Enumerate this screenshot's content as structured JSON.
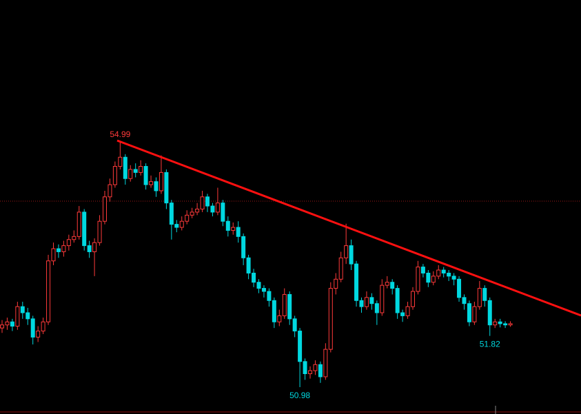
{
  "chart_data": {
    "type": "candlestick",
    "open": [
      51.95,
      52.0,
      52.05,
      51.98,
      52.3,
      52.2,
      52.1,
      51.8,
      51.9,
      52.05,
      53.05,
      53.25,
      53.2,
      53.3,
      53.4,
      53.45,
      53.85,
      53.3,
      53.2,
      53.35,
      53.7,
      54.1,
      54.3,
      54.6,
      54.75,
      54.4,
      54.55,
      54.5,
      54.6,
      54.3,
      54.35,
      54.2,
      54.5,
      54.0,
      53.65,
      53.6,
      53.7,
      53.8,
      53.85,
      53.9,
      54.1,
      53.95,
      53.85,
      54.0,
      53.7,
      53.55,
      53.6,
      53.45,
      53.1,
      52.85,
      52.7,
      52.6,
      52.55,
      52.4,
      52.05,
      52.15,
      52.5,
      52.1,
      51.9,
      51.4,
      51.2,
      51.25,
      51.35,
      51.15,
      51.6,
      52.6,
      52.75,
      53.1,
      53.3,
      53.0,
      52.4,
      52.3,
      52.45,
      52.35,
      52.2,
      52.65,
      52.7,
      52.6,
      52.2,
      52.15,
      52.3,
      52.55,
      52.95,
      52.85,
      52.7,
      52.8,
      52.9,
      52.85,
      52.8,
      52.75,
      52.45,
      52.35,
      52.05,
      52.3,
      52.6,
      52.4,
      52.0,
      52.05,
      52.02,
      52.0
    ],
    "high": [
      52.08,
      52.12,
      52.1,
      52.38,
      52.38,
      52.28,
      52.15,
      51.98,
      52.12,
      53.15,
      53.35,
      53.32,
      53.38,
      53.48,
      53.55,
      53.95,
      53.9,
      53.38,
      53.42,
      53.8,
      54.2,
      54.4,
      54.68,
      54.99,
      54.8,
      54.62,
      54.65,
      54.7,
      54.65,
      54.45,
      54.42,
      54.78,
      54.55,
      54.05,
      53.72,
      53.78,
      53.88,
      53.92,
      54.0,
      54.2,
      54.15,
      54.0,
      54.25,
      54.05,
      53.78,
      53.68,
      53.7,
      53.5,
      53.15,
      52.92,
      52.75,
      52.65,
      52.6,
      52.45,
      52.25,
      52.6,
      52.55,
      52.15,
      51.95,
      51.45,
      51.32,
      51.42,
      51.4,
      51.7,
      52.7,
      52.85,
      53.2,
      53.66,
      53.4,
      53.05,
      52.45,
      52.55,
      52.52,
      52.4,
      52.75,
      52.8,
      52.75,
      52.65,
      52.25,
      52.38,
      52.62,
      53.05,
      53.0,
      52.9,
      52.88,
      52.98,
      52.95,
      52.9,
      52.85,
      52.8,
      52.5,
      52.4,
      52.38,
      52.72,
      52.65,
      52.45,
      52.1,
      52.1,
      52.06,
      52.06
    ],
    "low": [
      51.87,
      51.92,
      51.9,
      51.92,
      52.1,
      52.0,
      51.68,
      51.72,
      51.85,
      52.0,
      52.98,
      53.1,
      53.12,
      53.22,
      53.35,
      53.4,
      53.22,
      53.1,
      52.8,
      53.3,
      53.65,
      54.02,
      54.25,
      54.55,
      54.3,
      54.35,
      54.42,
      54.45,
      54.22,
      54.25,
      54.1,
      54.15,
      53.9,
      53.4,
      53.52,
      53.55,
      53.65,
      53.75,
      53.8,
      53.85,
      53.85,
      53.78,
      53.8,
      53.62,
      53.45,
      53.48,
      53.35,
      52.98,
      52.75,
      52.62,
      52.52,
      52.45,
      52.3,
      51.95,
      51.98,
      52.1,
      52.0,
      51.8,
      50.98,
      51.1,
      51.12,
      51.18,
      51.05,
      51.1,
      51.55,
      52.5,
      52.7,
      53.0,
      52.9,
      52.3,
      52.2,
      52.25,
      52.25,
      52.0,
      52.15,
      52.6,
      52.5,
      52.1,
      52.05,
      52.1,
      52.25,
      52.5,
      52.78,
      52.62,
      52.65,
      52.75,
      52.78,
      52.72,
      52.65,
      52.38,
      52.25,
      51.98,
      52.0,
      52.25,
      52.3,
      51.82,
      51.95,
      51.96,
      51.95,
      51.97
    ],
    "close": [
      52.0,
      52.05,
      51.98,
      52.3,
      52.2,
      52.1,
      51.8,
      51.9,
      52.05,
      53.05,
      53.25,
      53.2,
      53.3,
      53.4,
      53.45,
      53.85,
      53.3,
      53.2,
      53.35,
      53.7,
      54.1,
      54.3,
      54.6,
      54.75,
      54.4,
      54.55,
      54.5,
      54.6,
      54.3,
      54.35,
      54.2,
      54.5,
      54.0,
      53.65,
      53.6,
      53.7,
      53.8,
      53.85,
      53.9,
      54.1,
      53.95,
      53.85,
      54.0,
      53.7,
      53.55,
      53.6,
      53.45,
      53.1,
      52.85,
      52.7,
      52.6,
      52.55,
      52.4,
      52.05,
      52.15,
      52.5,
      52.1,
      51.9,
      51.4,
      51.2,
      51.25,
      51.35,
      51.15,
      51.6,
      52.6,
      52.75,
      53.1,
      53.3,
      53.0,
      52.4,
      52.3,
      52.45,
      52.35,
      52.2,
      52.65,
      52.7,
      52.6,
      52.2,
      52.15,
      52.3,
      52.55,
      52.95,
      52.85,
      52.7,
      52.8,
      52.9,
      52.85,
      52.8,
      52.75,
      52.45,
      52.35,
      52.05,
      52.3,
      52.6,
      52.4,
      52.0,
      52.05,
      52.02,
      52.0,
      52.02
    ],
    "up_color": "#ff3a3a",
    "down_color": "#00d8e0",
    "high_label": 54.99,
    "low_labels": [
      50.98,
      51.82
    ]
  }
}
